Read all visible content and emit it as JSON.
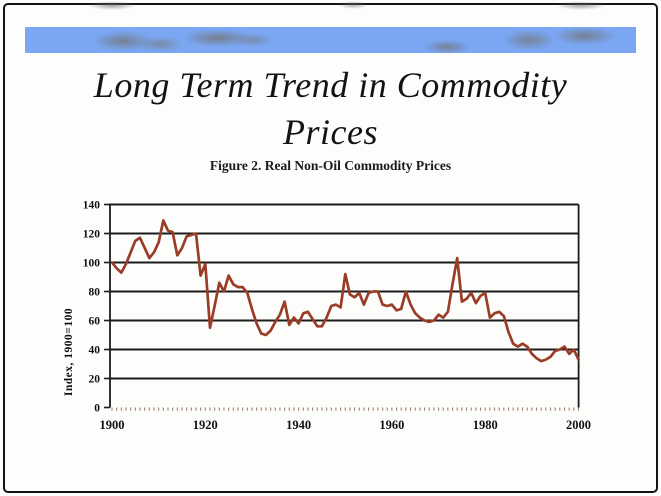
{
  "slide": {
    "title_line1": "Long Term Trend in Commodity",
    "title_line2": "Prices",
    "figure_caption": "Figure 2.  Real Non-Oil Commodity Prices"
  },
  "colors": {
    "banner_blue": "#7aa6f2",
    "series_line": "#993d27",
    "gridline": "#1c1c1c",
    "year_tick": "#9b8270",
    "text": "#111111"
  },
  "chart_data": {
    "type": "line",
    "title": "Figure 2.  Real Non-Oil Commodity Prices",
    "xlabel": "",
    "ylabel": "Index, 1900=100",
    "x_start": 1900,
    "x_step": 1,
    "x_end": 2000,
    "x_tick_labels": [
      "1900",
      "1920",
      "1940",
      "1960",
      "1980",
      "2000"
    ],
    "x_tick_years": [
      1900,
      1920,
      1940,
      1960,
      1980,
      2000
    ],
    "y_ticks": [
      0,
      20,
      40,
      60,
      80,
      100,
      120,
      140
    ],
    "ylim": [
      0,
      140
    ],
    "grid": "horizontal",
    "legend": "none",
    "series": [
      {
        "name": "Real non-oil commodity price index (1900=100)",
        "values": [
          100,
          96,
          93,
          99,
          107,
          115,
          117,
          110,
          103,
          107,
          114,
          129,
          122,
          121,
          105,
          110,
          118,
          119,
          120,
          91,
          99,
          55,
          70,
          86,
          80,
          91,
          85,
          83,
          83,
          79,
          68,
          58,
          51,
          50,
          53,
          59,
          64,
          73,
          57,
          62,
          58,
          65,
          66,
          61,
          56,
          56,
          62,
          70,
          71,
          69,
          92,
          78,
          76,
          79,
          71,
          79,
          80,
          80,
          71,
          70,
          71,
          67,
          68,
          80,
          71,
          65,
          62,
          60,
          59,
          60,
          64,
          62,
          66,
          85,
          103,
          73,
          75,
          79,
          72,
          77,
          79,
          62,
          65,
          66,
          63,
          52,
          44,
          42,
          44,
          42,
          37,
          34,
          32,
          33,
          35,
          39,
          40,
          42,
          37,
          40,
          33
        ]
      }
    ]
  }
}
